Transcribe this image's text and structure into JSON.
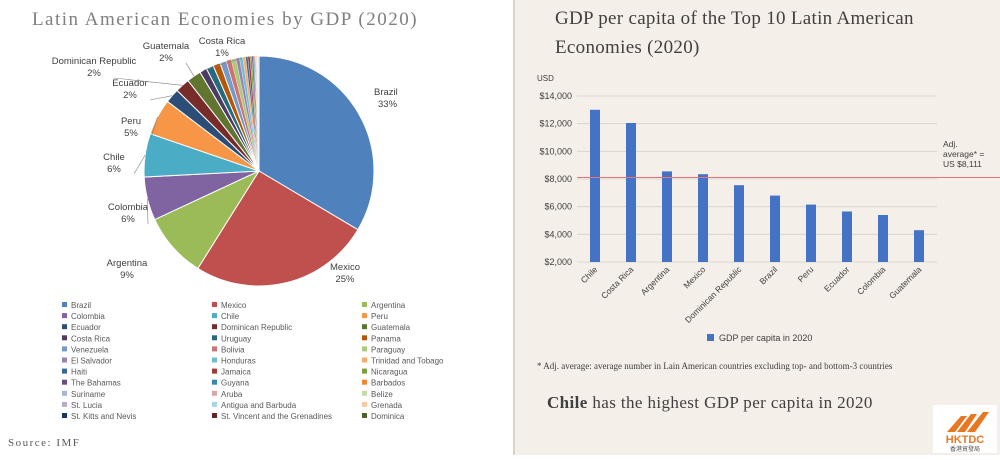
{
  "left": {
    "title": "Latin American Economies by GDP (2020)",
    "source": "Source: IMF"
  },
  "right": {
    "title_line1": "GDP per capita of the Top 10 Latin American",
    "title_line2": "Economies (2020)",
    "footnote": "* Adj. average: average number in Lain American countries excluding top- and bottom-3 countries",
    "headline_bold": "Chile",
    "headline_rest": " has the highest GDP per capita in 2020",
    "logo_text": "HKTDC",
    "logo_sub": "香港貿發局"
  },
  "chart_data": [
    {
      "type": "pie",
      "title": "Latin American Economies by GDP (2020)",
      "slices": [
        {
          "name": "Brazil",
          "value": 33,
          "label": "33%",
          "color": "#4f81bd"
        },
        {
          "name": "Mexico",
          "value": 25,
          "label": "25%",
          "color": "#c0504d"
        },
        {
          "name": "Argentina",
          "value": 9,
          "label": "9%",
          "color": "#9bbb59"
        },
        {
          "name": "Colombia",
          "value": 6,
          "label": "6%",
          "color": "#8064a2"
        },
        {
          "name": "Chile",
          "value": 6,
          "label": "6%",
          "color": "#4bacc6"
        },
        {
          "name": "Peru",
          "value": 5,
          "label": "5%",
          "color": "#f79646"
        },
        {
          "name": "Ecuador",
          "value": 2,
          "label": "2%",
          "color": "#2c4d75"
        },
        {
          "name": "Dominican Republic",
          "value": 2,
          "label": "2%",
          "color": "#772c2a"
        },
        {
          "name": "Guatemala",
          "value": 2,
          "label": "2%",
          "color": "#5f7530"
        },
        {
          "name": "Costa Rica",
          "value": 1,
          "label": "1%",
          "color": "#4d3b62"
        },
        {
          "name": "Uruguay",
          "value": 1,
          "color": "#276a7c"
        },
        {
          "name": "Panama",
          "value": 1,
          "color": "#b65708"
        },
        {
          "name": "Venezuela",
          "value": 0.9,
          "color": "#729aca"
        },
        {
          "name": "Bolivia",
          "value": 0.7,
          "color": "#cd7371"
        },
        {
          "name": "Paraguay",
          "value": 0.65,
          "color": "#afc97a"
        },
        {
          "name": "El Salvador",
          "value": 0.5,
          "color": "#9983b5"
        },
        {
          "name": "Honduras",
          "value": 0.45,
          "color": "#6fbdd1"
        },
        {
          "name": "Trinidad and Tobago",
          "value": 0.4,
          "color": "#f9ab6b"
        },
        {
          "name": "Haiti",
          "value": 0.3,
          "color": "#3a679c"
        },
        {
          "name": "Jamaica",
          "value": 0.3,
          "color": "#9f3b38"
        },
        {
          "name": "Nicaragua",
          "value": 0.25,
          "color": "#7e9c40"
        },
        {
          "name": "The Bahamas",
          "value": 0.2,
          "color": "#664f83"
        },
        {
          "name": "Guyana",
          "value": 0.15,
          "color": "#358ea6"
        },
        {
          "name": "Barbados",
          "value": 0.12,
          "color": "#f38630"
        },
        {
          "name": "Suriname",
          "value": 0.1,
          "color": "#a5b6d6"
        },
        {
          "name": "Aruba",
          "value": 0.1,
          "color": "#d6a9a8"
        },
        {
          "name": "Belize",
          "value": 0.08,
          "color": "#c9d9a9"
        },
        {
          "name": "St. Lucia",
          "value": 0.06,
          "color": "#b9accb"
        },
        {
          "name": "Antigua and Barbuda",
          "value": 0.05,
          "color": "#a9d6e2"
        },
        {
          "name": "Grenada",
          "value": 0.04,
          "color": "#fbc9a0"
        },
        {
          "name": "St. Kitts and Nevis",
          "value": 0.03,
          "color": "#17375e"
        },
        {
          "name": "St. Vincent and the Grenadines",
          "value": 0.03,
          "color": "#632523"
        },
        {
          "name": "Dominica",
          "value": 0.02,
          "color": "#4f6228"
        }
      ]
    },
    {
      "type": "bar",
      "title": "GDP per capita of the Top 10 Latin American Economies (2020)",
      "ylabel": "USD",
      "ylim": [
        2000,
        14000
      ],
      "yticks": [
        "$2,000",
        "$4,000",
        "$6,000",
        "$8,000",
        "$10,000",
        "$12,000",
        "$14,000"
      ],
      "grid": true,
      "legend": "bottom",
      "series": [
        {
          "name": "GDP per capita in 2020",
          "color": "#4472c4",
          "values": [
            13000,
            12050,
            8550,
            8350,
            7550,
            6800,
            6150,
            5650,
            5400,
            4300
          ]
        }
      ],
      "categories": [
        "Chile",
        "Costa Rica",
        "Argentina",
        "Mexico",
        "Dominican Republic",
        "Brazil",
        "Peru",
        "Ecuador",
        "Colombia",
        "Guatemala"
      ],
      "reference_line": {
        "value": 8111,
        "color": "#e8747a",
        "label_lines": [
          "Adj.",
          "average* =",
          "US $8,111"
        ]
      }
    }
  ]
}
